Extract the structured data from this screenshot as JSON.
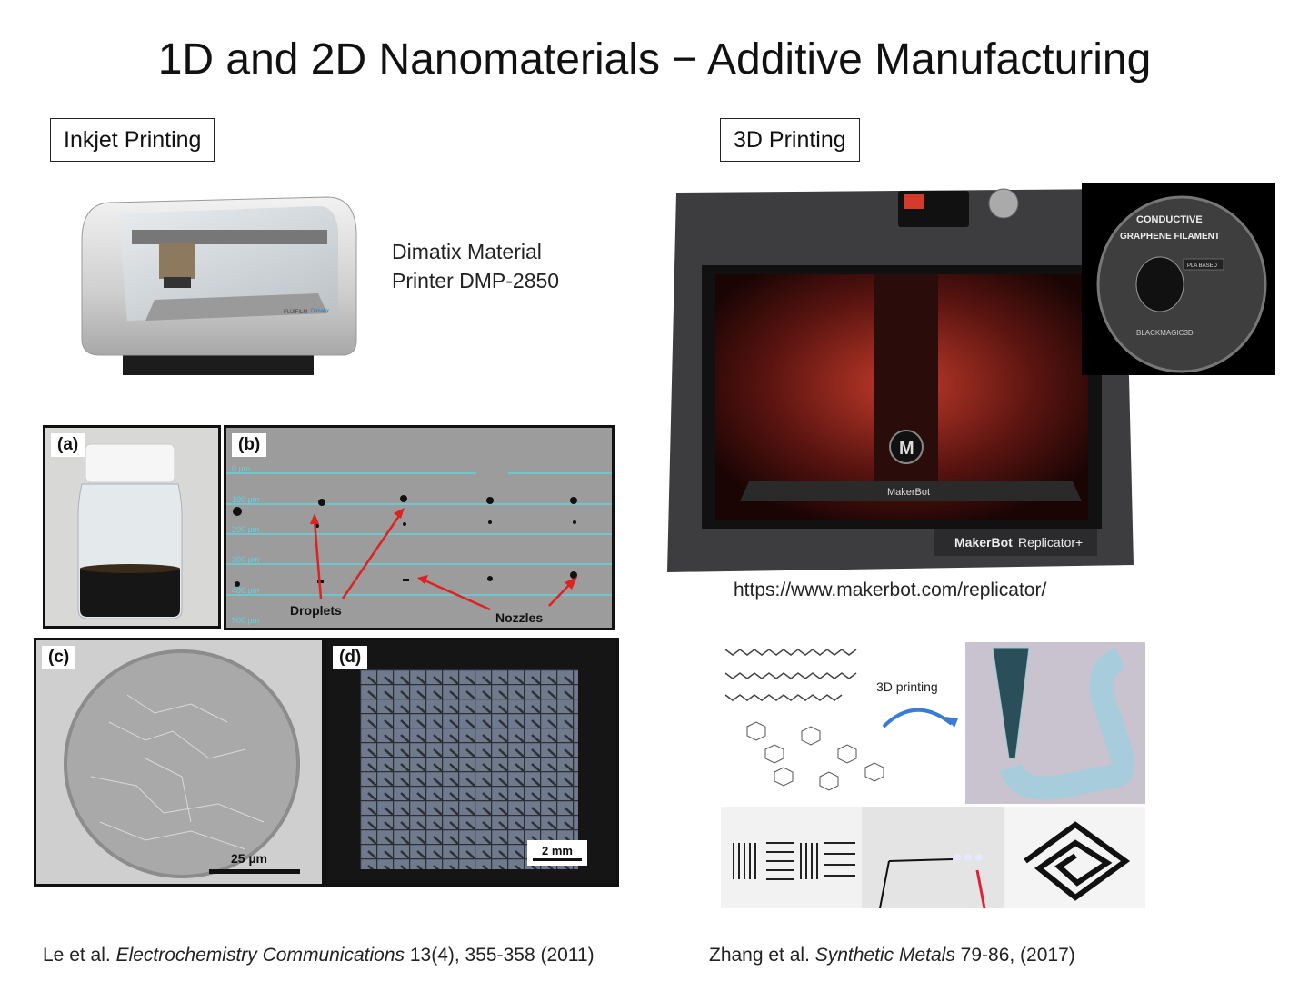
{
  "slide": {
    "title": "1D and 2D Nanomaterials − Additive Manufacturing"
  },
  "left": {
    "section_label": "Inkjet Printing",
    "printer_caption_line1": "Dimatix Material",
    "printer_caption_line2": "Printer DMP-2850",
    "printer_brand_1": "FUJIFILM",
    "printer_brand_2": "Dimatix",
    "panels": {
      "a_label": "(a)",
      "b_label": "(b)",
      "c_label": "(c)",
      "d_label": "(d)",
      "b_rows": [
        "0 µm",
        "100 µm",
        "200 µm",
        "300 µm",
        "400 µm",
        "500 µm"
      ],
      "b_droplets_label": "Droplets",
      "b_nozzles_label": "Nozzles",
      "c_scale": "25 µm",
      "d_scale": "2 mm"
    },
    "reference": {
      "authors": "Le et al.",
      "journal": "Electrochemistry Communications",
      "details": "13(4), 355-358 (2011)"
    }
  },
  "right": {
    "section_label": "3D Printing",
    "printer_brand": "MakerBot",
    "printer_model_brand": "MakerBot",
    "printer_model": "Replicator+",
    "filament_line1": "CONDUCTIVE",
    "filament_line2": "GRAPHENE FILAMENT",
    "filament_badge": "PLA BASED",
    "filament_maker": "BLACKMAGIC3D",
    "url": "https://www.makerbot.com/replicator/",
    "diagram_label": "3D printing",
    "reference": {
      "authors": "Zhang et al.",
      "journal": "Synthetic Metals",
      "details": "79-86, (2017)"
    }
  }
}
